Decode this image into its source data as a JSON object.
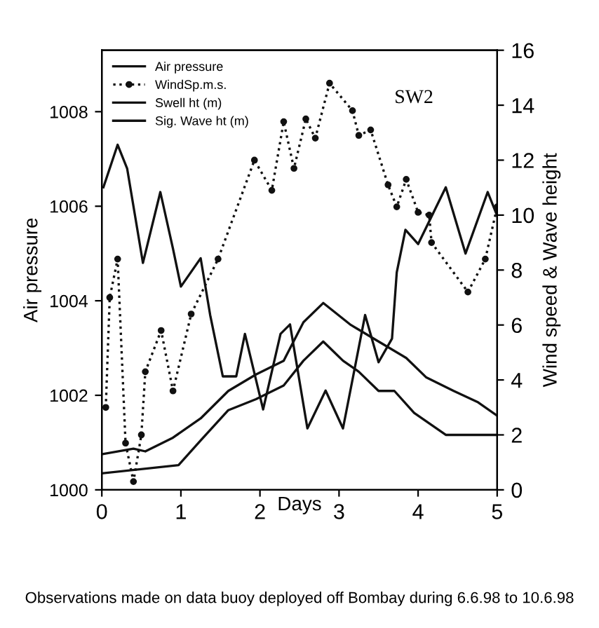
{
  "chart_data": {
    "type": "line",
    "xlabel": "Days",
    "ylabel": "Air pressure",
    "y2label": "Wind speed & Wave height",
    "annotations": [
      "SW2",
      "Observations made on data buoy deployed off Bombay during 6.6.98 to 10.6.98"
    ],
    "xlim": [
      0,
      5
    ],
    "xticks": [
      0,
      1,
      2,
      3,
      4,
      5
    ],
    "ylim": [
      1000,
      1009.3
    ],
    "yticks": [
      1000,
      1002,
      1004,
      1006,
      1008
    ],
    "y2lim": [
      0,
      16
    ],
    "y2ticks": [
      0,
      2,
      4,
      6,
      8,
      10,
      12,
      14,
      16
    ],
    "legend": "top left",
    "grid": false,
    "series": [
      {
        "name": "Air pressure",
        "color": "#111111",
        "axis": "y",
        "line_style": "solid",
        "marker": "none",
        "x": [
          0.02,
          0.2,
          0.32,
          0.52,
          0.74,
          0.9,
          1.0,
          1.25,
          1.37,
          1.53,
          1.7,
          1.81,
          2.04,
          2.26,
          2.38,
          2.6,
          2.83,
          3.05,
          3.33,
          3.5,
          3.67,
          3.73,
          3.84,
          4.0,
          4.35,
          4.6,
          4.88,
          5.0
        ],
        "values": [
          1006.4,
          1007.3,
          1006.8,
          1004.8,
          1006.3,
          1005.1,
          1004.3,
          1004.9,
          1003.7,
          1002.4,
          1002.4,
          1003.3,
          1001.7,
          1003.3,
          1003.5,
          1001.3,
          1002.1,
          1001.3,
          1003.7,
          1002.7,
          1003.2,
          1004.6,
          1005.5,
          1005.2,
          1006.4,
          1005.0,
          1006.3,
          1005.8
        ]
      },
      {
        "name": "WindSp.m.s.",
        "color": "#111111",
        "axis": "y2",
        "line_style": "dotted",
        "marker": "circle",
        "x": [
          0.05,
          0.1,
          0.2,
          0.3,
          0.4,
          0.5,
          0.55,
          0.75,
          0.9,
          1.13,
          1.47,
          1.93,
          2.15,
          2.3,
          2.43,
          2.58,
          2.7,
          2.88,
          3.17,
          3.25,
          3.4,
          3.62,
          3.73,
          3.85,
          4.0,
          4.14,
          4.17,
          4.63,
          4.85,
          5.0
        ],
        "values": [
          3.0,
          7.0,
          8.4,
          1.7,
          0.3,
          2.0,
          4.3,
          5.8,
          3.6,
          6.4,
          8.4,
          12.0,
          10.9,
          13.4,
          11.7,
          13.5,
          12.8,
          14.8,
          13.8,
          12.9,
          13.1,
          11.1,
          10.3,
          11.3,
          10.1,
          10.0,
          9.0,
          7.2,
          8.4,
          10.3
        ]
      },
      {
        "name": "Swell ht (m)",
        "color": "#111111",
        "axis": "y2",
        "line_style": "solid",
        "marker": "none",
        "x": [
          0.0,
          0.97,
          1.25,
          1.6,
          1.95,
          2.3,
          2.55,
          2.8,
          3.05,
          3.25,
          3.5,
          3.7,
          3.95,
          4.35,
          4.6,
          5.0
        ],
        "values": [
          0.6,
          0.9,
          1.8,
          2.9,
          3.3,
          3.8,
          4.7,
          5.4,
          4.7,
          4.3,
          3.6,
          3.6,
          2.8,
          2.0,
          2.0,
          2.0
        ]
      },
      {
        "name": "Sig. Wave ht (m)",
        "color": "#111111",
        "axis": "y2",
        "line_style": "solid",
        "marker": "none",
        "x": [
          0.01,
          0.4,
          0.55,
          0.9,
          1.25,
          1.6,
          1.95,
          2.3,
          2.55,
          2.8,
          3.15,
          3.5,
          3.85,
          4.1,
          4.45,
          4.75,
          5.0
        ],
        "values": [
          1.3,
          1.5,
          1.4,
          1.9,
          2.6,
          3.6,
          4.2,
          4.7,
          6.1,
          6.8,
          6.0,
          5.4,
          4.8,
          4.1,
          3.6,
          3.2,
          2.7
        ]
      }
    ]
  }
}
